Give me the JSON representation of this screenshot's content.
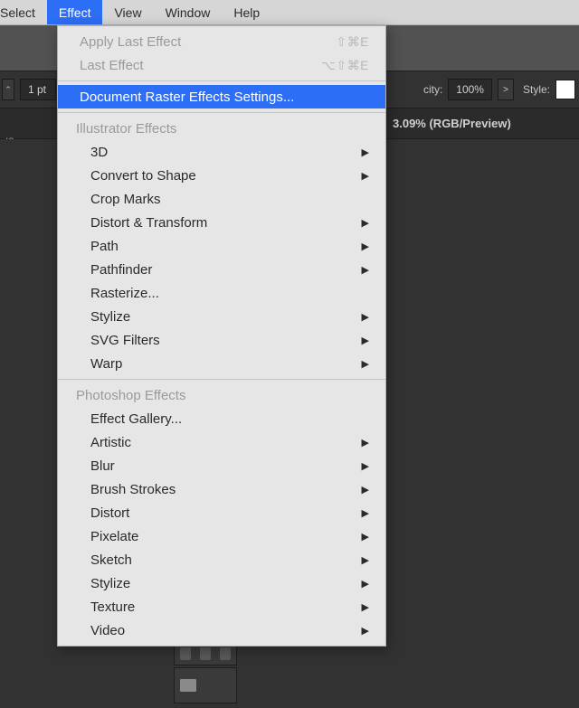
{
  "menubar": {
    "items": [
      {
        "label": "Select",
        "partial": true
      },
      {
        "label": "Effect",
        "active": true
      },
      {
        "label": "View"
      },
      {
        "label": "Window"
      },
      {
        "label": "Help"
      }
    ]
  },
  "toolbar": {
    "stroke_value": "1 pt",
    "opacity_label_suffix": "city:",
    "opacity_value": "100%",
    "style_label": "Style:",
    "chevron": ">"
  },
  "tab": {
    "title_suffix": "3.09% (RGB/Preview)"
  },
  "panel_tab_left": "ıs",
  "dropdown": {
    "top": [
      {
        "label": "Apply Last Effect",
        "shortcut": "⇧⌘E",
        "disabled": true
      },
      {
        "label": "Last Effect",
        "shortcut": "⌥⇧⌘E",
        "disabled": true
      }
    ],
    "highlighted": {
      "label": "Document Raster Effects Settings..."
    },
    "section1_header": "Illustrator Effects",
    "section1": [
      {
        "label": "3D",
        "submenu": true
      },
      {
        "label": "Convert to Shape",
        "submenu": true
      },
      {
        "label": "Crop Marks",
        "submenu": false
      },
      {
        "label": "Distort & Transform",
        "submenu": true
      },
      {
        "label": "Path",
        "submenu": true
      },
      {
        "label": "Pathfinder",
        "submenu": true
      },
      {
        "label": "Rasterize...",
        "submenu": false
      },
      {
        "label": "Stylize",
        "submenu": true
      },
      {
        "label": "SVG Filters",
        "submenu": true
      },
      {
        "label": "Warp",
        "submenu": true
      }
    ],
    "section2_header": "Photoshop Effects",
    "section2": [
      {
        "label": "Effect Gallery...",
        "submenu": false
      },
      {
        "label": "Artistic",
        "submenu": true
      },
      {
        "label": "Blur",
        "submenu": true
      },
      {
        "label": "Brush Strokes",
        "submenu": true
      },
      {
        "label": "Distort",
        "submenu": true
      },
      {
        "label": "Pixelate",
        "submenu": true
      },
      {
        "label": "Sketch",
        "submenu": true
      },
      {
        "label": "Stylize",
        "submenu": true
      },
      {
        "label": "Texture",
        "submenu": true
      },
      {
        "label": "Video",
        "submenu": true
      }
    ],
    "colors": {
      "highlight_bg": "#2d6ef6",
      "menu_bg": "#e6e6e6",
      "disabled_text": "#9a9a9a"
    }
  }
}
